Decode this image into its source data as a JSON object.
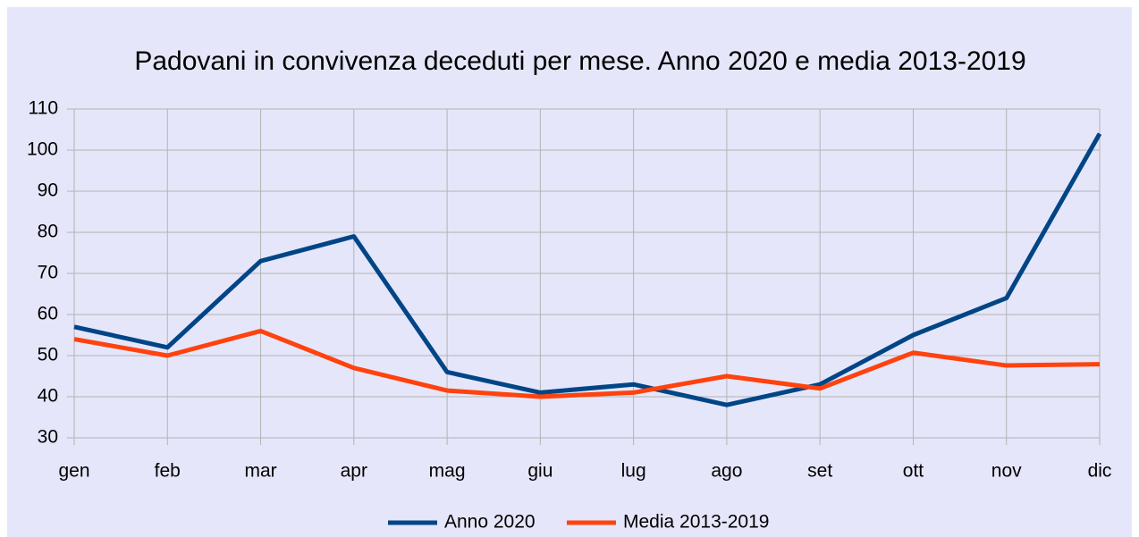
{
  "chart_data": {
    "type": "line",
    "title": "Padovani in convivenza deceduti per mese. Anno 2020 e media 2013-2019",
    "categories": [
      "gen",
      "feb",
      "mar",
      "apr",
      "mag",
      "giu",
      "lug",
      "ago",
      "set",
      "ott",
      "nov",
      "dic"
    ],
    "series": [
      {
        "name": "Anno 2020",
        "color": "#004586",
        "values": [
          57,
          52,
          73,
          79,
          46,
          41,
          43,
          38,
          43,
          55,
          64,
          104
        ]
      },
      {
        "name": "Media 2013-2019",
        "color": "#ff420e",
        "values": [
          54,
          50,
          56,
          47,
          41.5,
          40,
          41,
          45,
          42,
          50.7,
          47.6,
          47.9
        ]
      }
    ],
    "ylim": [
      30,
      110
    ],
    "yticks": [
      30,
      40,
      50,
      60,
      70,
      80,
      90,
      100,
      110
    ],
    "grid": true,
    "legend": "bottom"
  }
}
